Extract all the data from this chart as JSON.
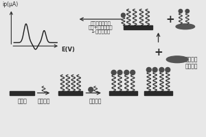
{
  "bg_color": "#e8e8e8",
  "electrode_color": "#2a2a2a",
  "strand_color": "#2a2a2a",
  "bacteria_color": "#666666",
  "arrow_color": "#2a2a2a",
  "text_color": "#2a2a2a",
  "labels": {
    "gold_electrode": "金电极",
    "capture_probe": "捕获探针",
    "signal_probe": "信号探针",
    "bacteria_line1": "肠致病性",
    "bacteria_line2": "大肠杆菌",
    "reagents_line1": "链亲和抗生物素",
    "reagents_line2": "蛋白+碱性磷酸酶",
    "substrate": "1-萘基磷酸盐",
    "x_axis": "E(V)",
    "y_axis": "ip(μA)"
  },
  "font_size": 5.5
}
